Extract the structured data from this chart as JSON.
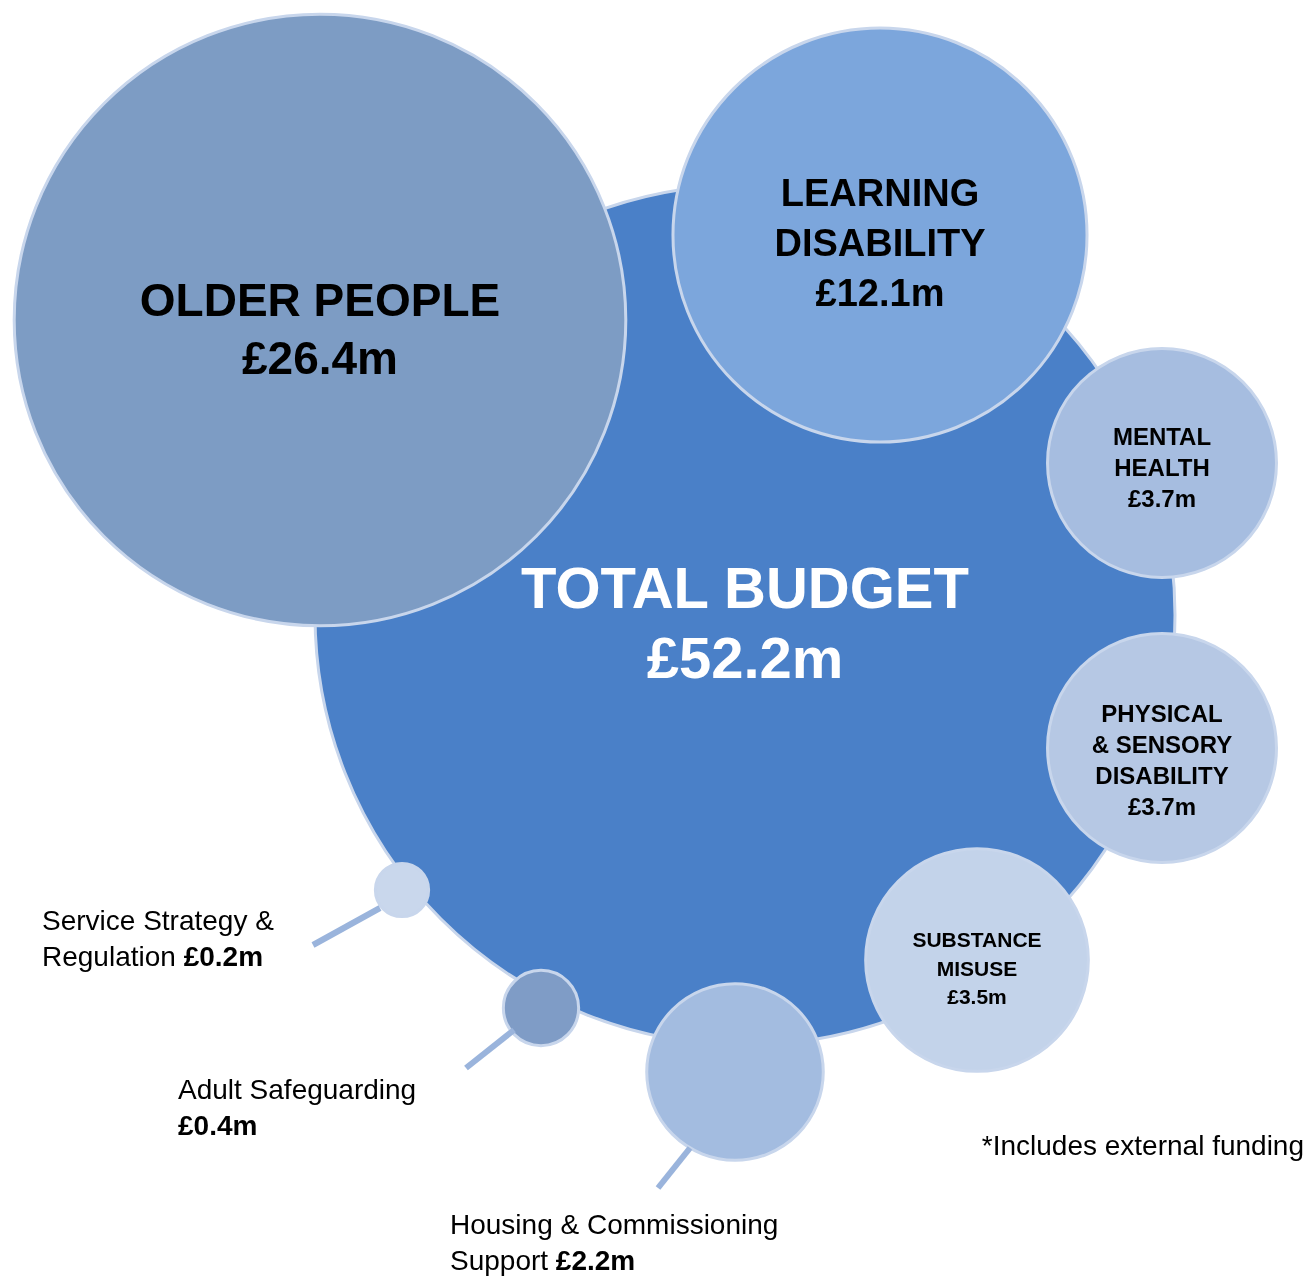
{
  "chart_data": {
    "type": "other",
    "categories": [
      "TOTAL BUDGET",
      "OLDER PEOPLE",
      "LEARNING DISABILITY",
      "MENTAL HEALTH",
      "PHYSICAL & SENSORY DISABILITY",
      "SUBSTANCE MISUSE",
      "Housing & Commissioning Support",
      "Adult Safeguarding",
      "Service Strategy & Regulation"
    ],
    "values": [
      52.2,
      26.4,
      12.1,
      3.7,
      3.7,
      3.5,
      2.2,
      0.4,
      0.2
    ],
    "value_labels": [
      "£52.2m",
      "£26.4m",
      "£12.1m",
      "£3.7m",
      "£3.7m",
      "£3.5m",
      "£2.2m",
      "£0.4m",
      "£0.2m"
    ],
    "colors": [
      "#4a80c8",
      "#7d9cc4",
      "#7ca6dc",
      "#a6bde0",
      "#b6c8e4",
      "#c3d3ea",
      "#a3bce0",
      "#7f9cc6",
      "#c9d7ec"
    ],
    "annotations": [
      "*Includes external funding"
    ]
  }
}
